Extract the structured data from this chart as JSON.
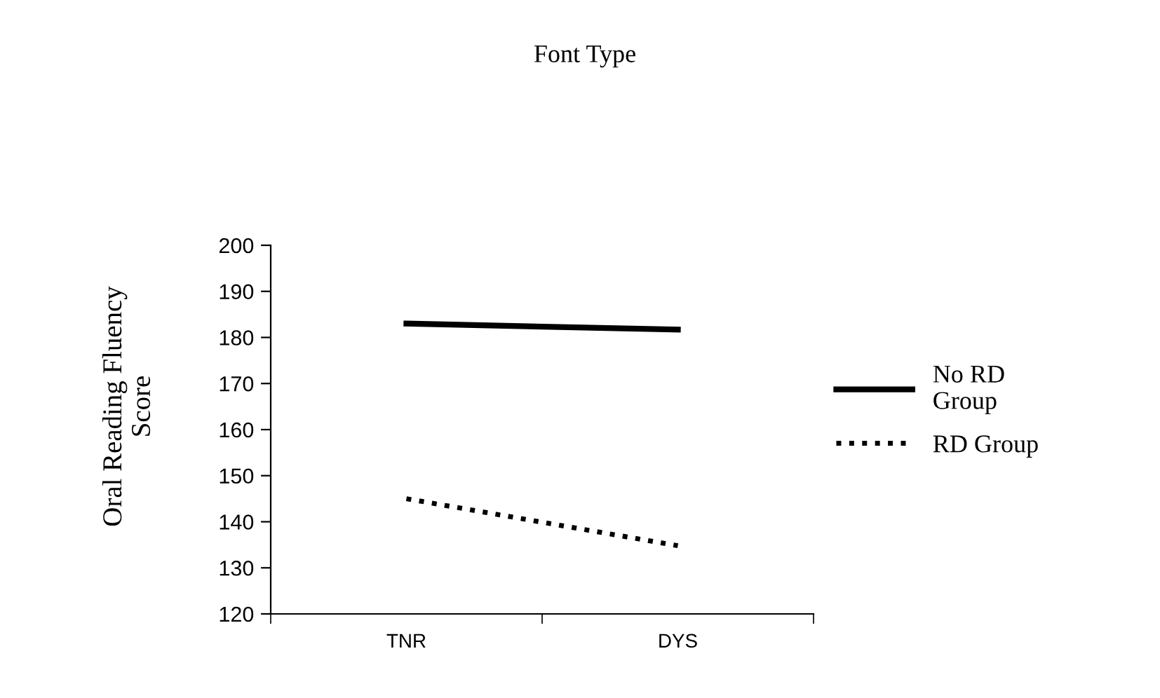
{
  "chart_data": {
    "type": "line",
    "title": "Font Type",
    "ylabel": "Oral Reading Fluency\nScore",
    "categories": [
      "TNR",
      "DYS"
    ],
    "series": [
      {
        "name": "No RD\nGroup",
        "color": "#000000",
        "values": [
          183,
          181.7
        ],
        "line_style": "solid"
      },
      {
        "name": "RD Group",
        "color": "#000000",
        "values": [
          145,
          134.8
        ],
        "line_style": "dotted"
      }
    ],
    "ylim": [
      120,
      200
    ],
    "yticks": [
      120,
      130,
      140,
      150,
      160,
      170,
      180,
      190,
      200
    ],
    "grid": false,
    "legend": "right",
    "marker": "none"
  }
}
